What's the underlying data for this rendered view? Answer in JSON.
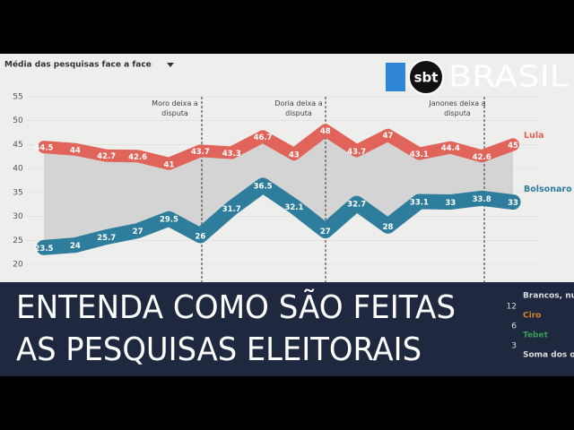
{
  "logo": {
    "mark": "sbt",
    "name": "BRASIL"
  },
  "headline": [
    "ENTENDA COMO SÃO FEITAS",
    "AS PESQUISAS ELEITORAIS"
  ],
  "chart_data": {
    "type": "line",
    "title": "Média das pesquisas face a face",
    "categories": [
      null,
      null,
      null,
      null,
      null,
      null,
      null,
      null,
      null,
      null,
      null,
      null,
      null,
      null,
      null,
      null
    ],
    "series": [
      {
        "name": "Lula",
        "color": "#e0645a",
        "values": [
          44.5,
          44,
          42.7,
          42.6,
          41,
          43.7,
          43.3,
          46.7,
          43,
          48,
          43.7,
          47,
          43.1,
          44.4,
          42.6,
          45
        ]
      },
      {
        "name": "Bolsonaro",
        "color": "#2e7d9c",
        "values": [
          23.5,
          24,
          25.7,
          27,
          29.5,
          26,
          31.7,
          36.5,
          32.1,
          27,
          32.7,
          28,
          33.1,
          33,
          33.8,
          33
        ]
      }
    ],
    "ylim": [
      20,
      55
    ],
    "yticks": [
      20,
      25,
      30,
      35,
      40,
      45,
      50,
      55
    ],
    "annotations": [
      "Moro deixa a\ndisputa",
      "Doria deixa a\ndisputa",
      "Janones deixa a\ndisputa"
    ],
    "lower_legend": [
      {
        "name": "Brancos, nulos, indecisos, abstenções",
        "value": 12
      },
      {
        "name": "Ciro",
        "value": 6
      },
      {
        "name": "Tebet",
        "value": 3
      },
      {
        "name": "Soma dos outros candidatos"
      }
    ]
  }
}
